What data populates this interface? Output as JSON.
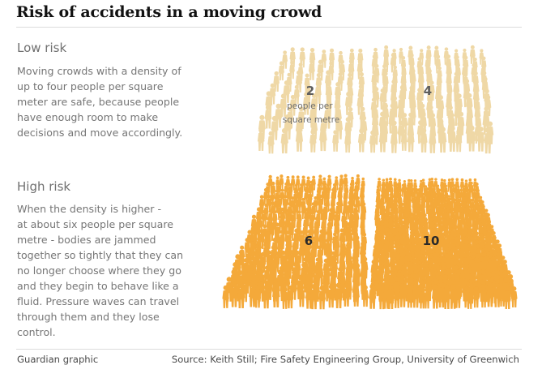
{
  "title": "Risk of accidents in a moving crowd",
  "low_risk": {
    "heading": "Low risk",
    "body": "Moving crowds with a density of\nup to four people per square\nmeter are safe, because people\nhave enough room to make\ndecisions and move accordingly.",
    "panels": [
      {
        "density": "2",
        "unit_label": "people per\nsquare metre"
      },
      {
        "density": "4"
      }
    ],
    "color": "#f0d9a9"
  },
  "high_risk": {
    "heading": "High risk",
    "body": "When the density is higher -\nat about six people per square\nmetre - bodies are jammed\ntogether so tightly that they can\nno longer choose where they go\nand they begin to behave like a\nfluid. Pressure waves can travel\nthrough them and they lose\ncontrol.",
    "panels": [
      {
        "density": "6"
      },
      {
        "density": "10"
      }
    ],
    "color": "#f6ad3b"
  },
  "footer": {
    "credit": "Guardian graphic",
    "source": "Source: Keith Still; Fire Safety Engineering Group, University of Greenwich"
  },
  "colors": {
    "low_fill": "#efd8a6",
    "low_text": "#6b6b6b",
    "high_fill": "#f4a93a",
    "high_text": "#2a2a2a"
  },
  "icons": [
    "person-silhouette-icon"
  ]
}
